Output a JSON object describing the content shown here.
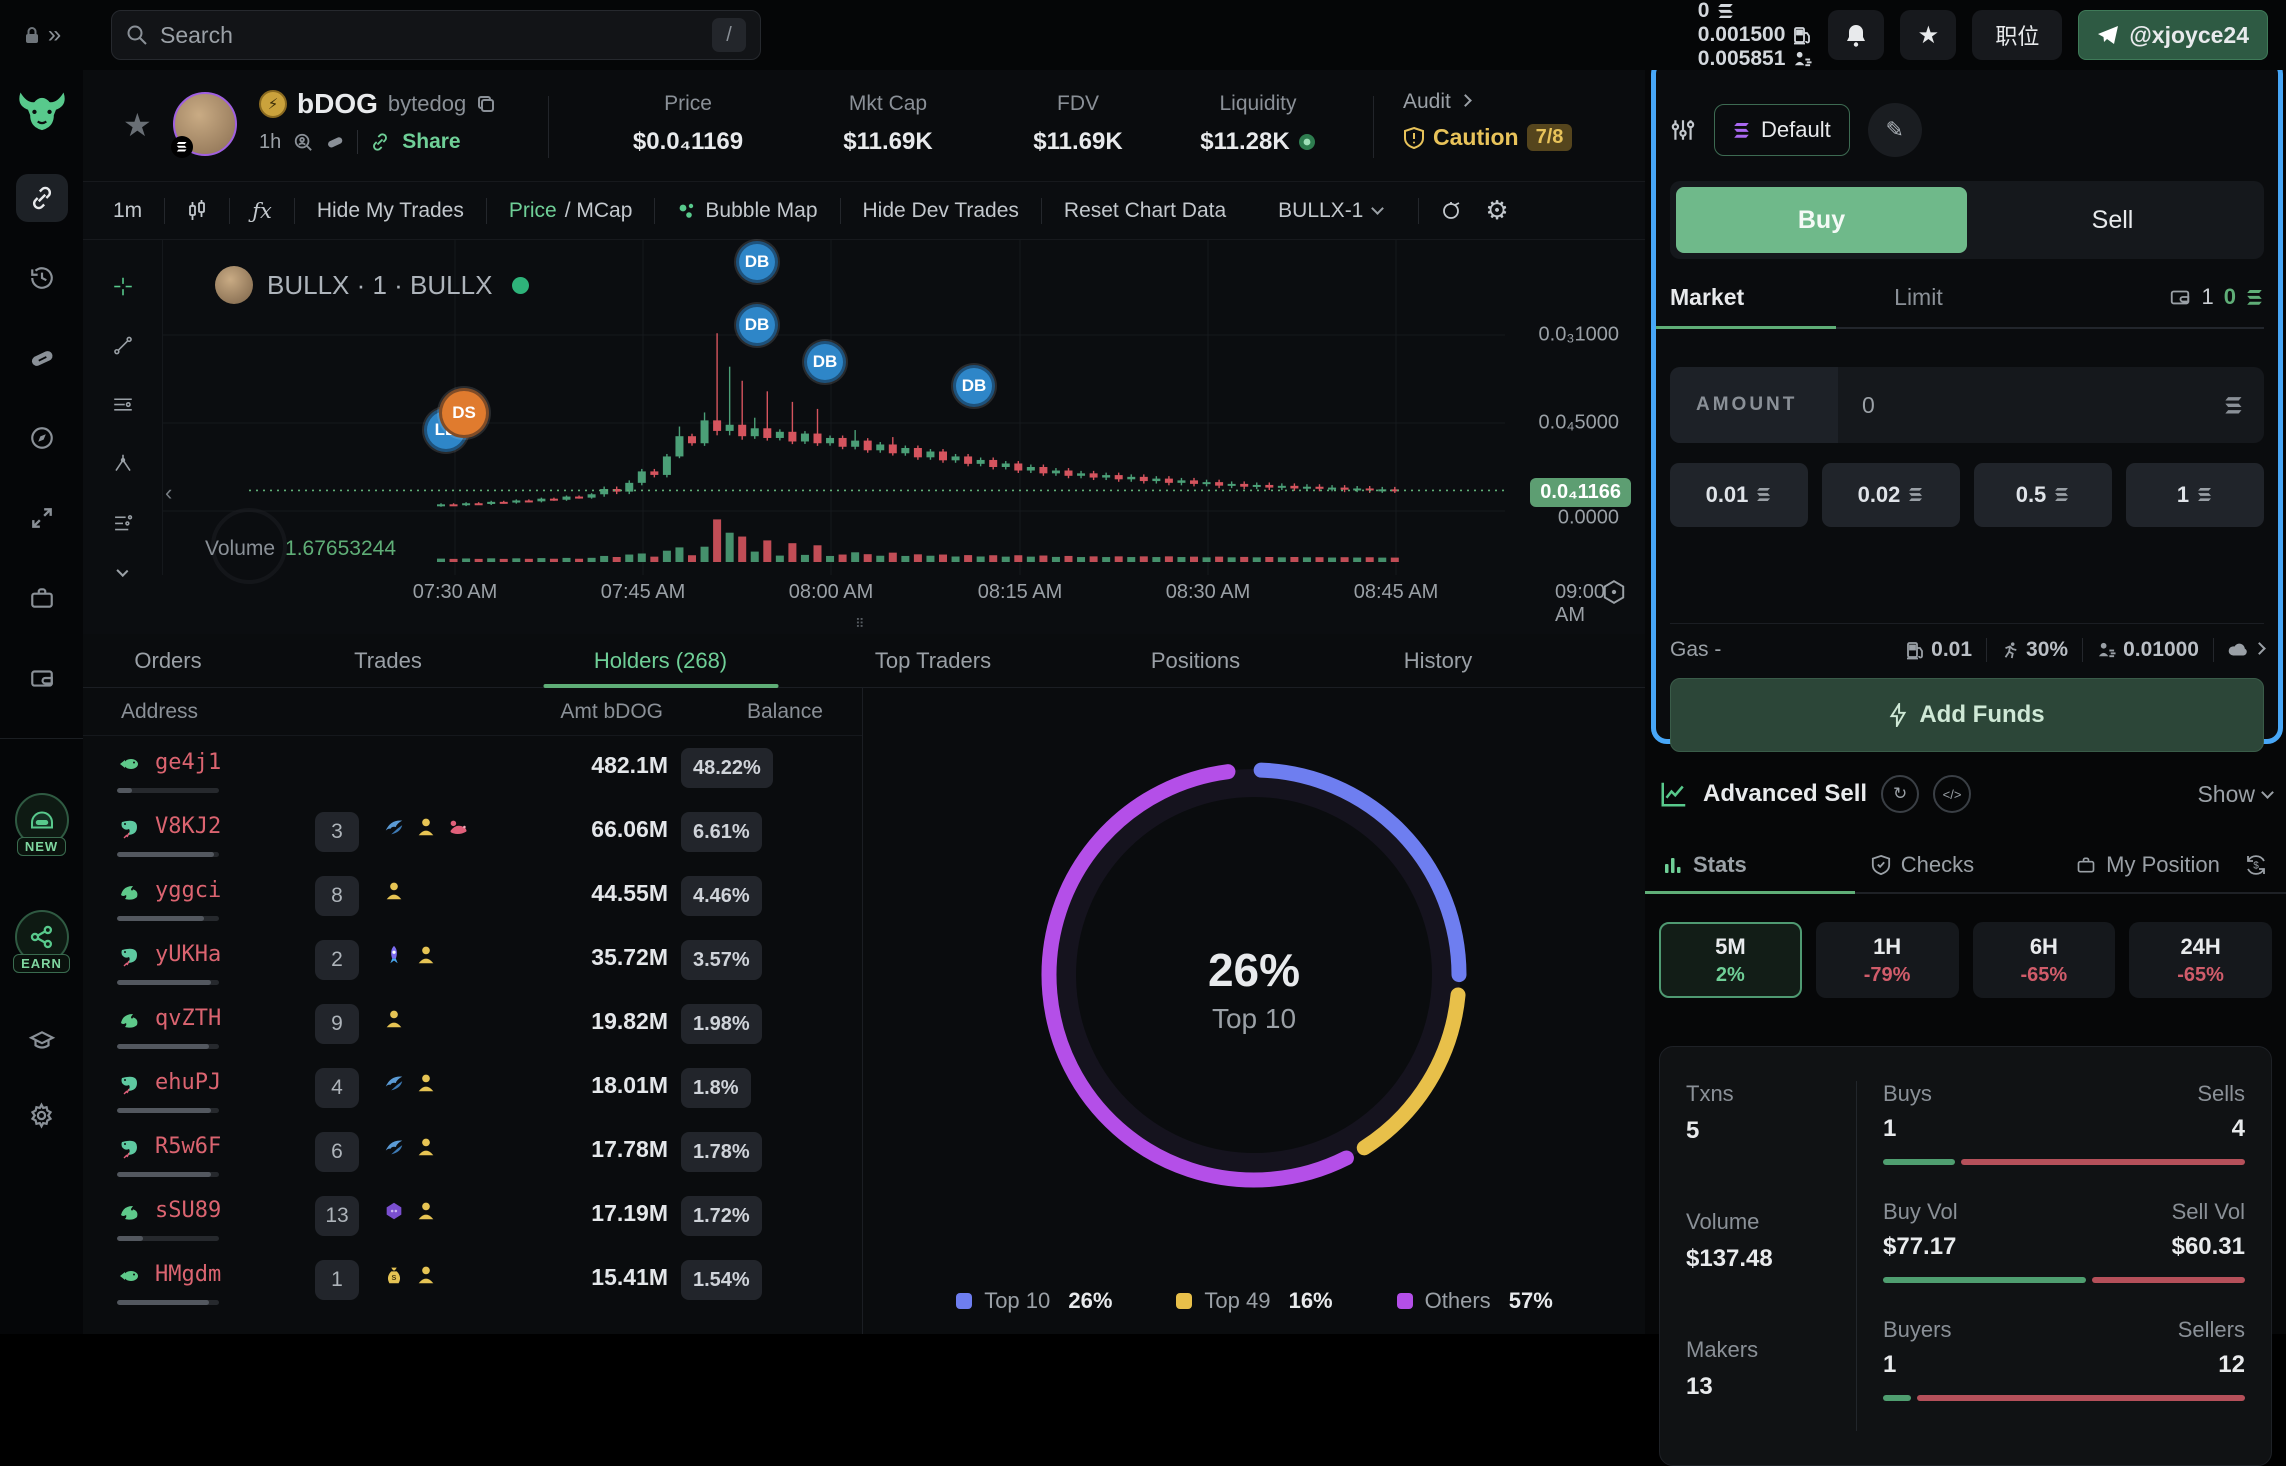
{
  "topbar": {
    "search_placeholder": "Search",
    "search_shortcut": "/",
    "balances": [
      {
        "icon": "solana-icon",
        "value": "0"
      },
      {
        "icon": "gas-pump-icon",
        "value": "0.001500"
      },
      {
        "icon": "priority-fee-icon",
        "value": "0.005851"
      }
    ],
    "workspace_button": "职位",
    "account": "@xjoyce24"
  },
  "token_header": {
    "name": "bDOG",
    "fullname": "bytedog",
    "age": "1h",
    "share_label": "Share",
    "stats": [
      {
        "label": "Price",
        "value": "$0.0₄1169"
      },
      {
        "label": "Mkt Cap",
        "value": "$11.69K"
      },
      {
        "label": "FDV",
        "value": "$11.69K"
      },
      {
        "label": "Liquidity",
        "value": "$11.28K"
      }
    ],
    "audit": {
      "label": "Audit",
      "status": "Caution",
      "score": "7/8"
    }
  },
  "chart_toolbar": {
    "interval": "1m",
    "fx": "ƒx",
    "hide_my_trades": "Hide My Trades",
    "price_label": "Price",
    "mcap_label": "/ MCap",
    "bubble_map": "Bubble Map",
    "hide_dev_trades": "Hide Dev Trades",
    "reset": "Reset Chart Data",
    "source": "BULLX-1"
  },
  "chart": {
    "title": "BULLX · 1 · BULLX",
    "volume_label": "Volume",
    "volume_value": "1.67653244"
  },
  "chart_data": [
    {
      "type": "candlestick",
      "title": "BULLX · 1 · BULLX",
      "interval": "1m",
      "price_unit": "1e-4",
      "ylim": [
        0,
        10.5
      ],
      "grid": true,
      "y_ticks": [
        {
          "label": "0.0₃1000",
          "value": 10
        },
        {
          "label": "0.0₄5000",
          "value": 5
        },
        {
          "label": "0.0000",
          "value": 0
        }
      ],
      "current_price": {
        "label": "0.0₄1166",
        "value": 1.166
      },
      "x_ticks": [
        "07:30 AM",
        "07:45 AM",
        "08:00 AM",
        "08:15 AM",
        "08:30 AM",
        "08:45 AM",
        "09:00 AM"
      ],
      "volume_display": "1.67653244",
      "markers": [
        {
          "label": "LB",
          "x": 283,
          "y": 190,
          "color": "#2e86c8",
          "size": 44
        },
        {
          "label": "DS",
          "x": 301,
          "y": 173,
          "color": "#e07b2e",
          "size": 50
        },
        {
          "label": "DB",
          "x": 594,
          "y": 22,
          "color": "#2e86c8",
          "size": 42
        },
        {
          "label": "DB",
          "x": 594,
          "y": 85,
          "color": "#2e86c8",
          "size": 42
        },
        {
          "label": "DB",
          "x": 662,
          "y": 122,
          "color": "#2e86c8",
          "size": 42
        },
        {
          "label": "DB",
          "x": 811,
          "y": 146,
          "color": "#2e86c8",
          "size": 42
        }
      ],
      "candles": [
        [
          0.3,
          0.38
        ],
        [
          0.38,
          0.34
        ],
        [
          0.34,
          0.44
        ],
        [
          0.44,
          0.4
        ],
        [
          0.4,
          0.52
        ],
        [
          0.52,
          0.48
        ],
        [
          0.48,
          0.6
        ],
        [
          0.6,
          0.55
        ],
        [
          0.55,
          0.7
        ],
        [
          0.7,
          0.64
        ],
        [
          0.64,
          0.82
        ],
        [
          0.82,
          0.76
        ],
        [
          0.76,
          0.95
        ],
        [
          0.95,
          1.25
        ],
        [
          1.25,
          1.1
        ],
        [
          1.1,
          1.6
        ],
        [
          1.6,
          2.25
        ],
        [
          2.25,
          2.05
        ],
        [
          2.05,
          3.1
        ],
        [
          3.1,
          4.25,
          4.8,
          3.0
        ],
        [
          4.25,
          3.85
        ],
        [
          3.85,
          5.15,
          5.6,
          3.7
        ],
        [
          5.15,
          4.55,
          10.1,
          4.3
        ],
        [
          4.55,
          4.9,
          8.2,
          4.3
        ],
        [
          4.9,
          4.25,
          7.4,
          4.05
        ],
        [
          4.25,
          4.7,
          5.3,
          4.1
        ],
        [
          4.7,
          4.15,
          6.8,
          4.0
        ],
        [
          4.15,
          4.5
        ],
        [
          4.5,
          3.95,
          6.2,
          3.8
        ],
        [
          3.95,
          4.4
        ],
        [
          4.4,
          3.85,
          5.8,
          3.7
        ],
        [
          3.85,
          4.15
        ],
        [
          4.15,
          3.65
        ],
        [
          3.65,
          4.0,
          4.6,
          3.5
        ],
        [
          4.0,
          3.45
        ],
        [
          3.45,
          3.78
        ],
        [
          3.78,
          3.28,
          4.2,
          3.15
        ],
        [
          3.28,
          3.58
        ],
        [
          3.58,
          3.05
        ],
        [
          3.05,
          3.38
        ],
        [
          3.38,
          2.88
        ],
        [
          2.88,
          3.1
        ],
        [
          3.1,
          2.68
        ],
        [
          2.68,
          2.9
        ],
        [
          2.9,
          2.5
        ],
        [
          2.5,
          2.7
        ],
        [
          2.7,
          2.3
        ],
        [
          2.3,
          2.5
        ],
        [
          2.5,
          2.14
        ],
        [
          2.14,
          2.3
        ],
        [
          2.3,
          2.0
        ],
        [
          2.0,
          2.14
        ],
        [
          2.14,
          1.9
        ],
        [
          1.9,
          2.04
        ],
        [
          2.04,
          1.8
        ],
        [
          1.8,
          1.94
        ],
        [
          1.94,
          1.7
        ],
        [
          1.7,
          1.84
        ],
        [
          1.84,
          1.6
        ],
        [
          1.6,
          1.74
        ],
        [
          1.74,
          1.54
        ],
        [
          1.54,
          1.64
        ],
        [
          1.64,
          1.44
        ],
        [
          1.44,
          1.54
        ],
        [
          1.54,
          1.38
        ],
        [
          1.38,
          1.48
        ],
        [
          1.48,
          1.33
        ],
        [
          1.33,
          1.43
        ],
        [
          1.43,
          1.28
        ],
        [
          1.28,
          1.38
        ],
        [
          1.38,
          1.26
        ],
        [
          1.26,
          1.33
        ],
        [
          1.33,
          1.21
        ],
        [
          1.21,
          1.28
        ],
        [
          1.28,
          1.17
        ],
        [
          1.17,
          1.23
        ],
        [
          1.23,
          1.166
        ]
      ]
    },
    {
      "type": "donut",
      "center_value": "26%",
      "center_label": "Top 10",
      "legend_position": "bottom",
      "segments": [
        {
          "label": "Top 10",
          "pct": 26,
          "color": "#6e7ef0"
        },
        {
          "label": "Top 49",
          "pct": 16,
          "color": "#e8c04a"
        },
        {
          "label": "Others",
          "pct": 57,
          "color": "#b44fe8"
        }
      ]
    },
    {
      "type": "table",
      "name": "stats-5m",
      "txns": 5,
      "buys": 1,
      "sells": 4,
      "volume_usd": 137.48,
      "buy_vol": 77.17,
      "sell_vol": 60.31,
      "makers": 13,
      "buyers": 1,
      "sellers": 12
    }
  ],
  "bottom_tabs": {
    "items": [
      "Orders",
      "Trades",
      "Holders (268)",
      "Top Traders",
      "Positions",
      "History"
    ],
    "active_index": 2
  },
  "holders": {
    "columns": [
      "Address",
      "Amt bDOG",
      "Balance"
    ],
    "rows": [
      {
        "address": "ge4j1",
        "animal": "fish",
        "badge": "",
        "traits": [],
        "amount": "482.1M",
        "pct": "48.22%",
        "bar": 15
      },
      {
        "address": "V8KJ2",
        "animal": "shrimp",
        "badge": "3",
        "traits": [
          "phoenix",
          "person",
          "rat"
        ],
        "amount": "66.06M",
        "pct": "6.61%",
        "bar": 95
      },
      {
        "address": "yggci",
        "animal": "dolphin",
        "badge": "8",
        "traits": [
          "person"
        ],
        "amount": "44.55M",
        "pct": "4.46%",
        "bar": 85
      },
      {
        "address": "yUKHa",
        "animal": "shrimp",
        "badge": "2",
        "traits": [
          "rocket",
          "person"
        ],
        "amount": "35.72M",
        "pct": "3.57%",
        "bar": 92
      },
      {
        "address": "qvZTH",
        "animal": "dolphin",
        "badge": "9",
        "traits": [
          "person"
        ],
        "amount": "19.82M",
        "pct": "1.98%",
        "bar": 90
      },
      {
        "address": "ehuPJ",
        "animal": "shrimp",
        "badge": "4",
        "traits": [
          "phoenix",
          "person"
        ],
        "amount": "18.01M",
        "pct": "1.8%",
        "bar": 92
      },
      {
        "address": "R5w6F",
        "animal": "shrimp",
        "badge": "6",
        "traits": [
          "phoenix",
          "person"
        ],
        "amount": "17.78M",
        "pct": "1.78%",
        "bar": 92
      },
      {
        "address": "sSU89",
        "animal": "dolphin",
        "badge": "13",
        "traits": [
          "ghost",
          "person"
        ],
        "amount": "17.19M",
        "pct": "1.72%",
        "bar": 25
      },
      {
        "address": "HMgdm",
        "animal": "fish",
        "badge": "1",
        "traits": [
          "moneybag",
          "person"
        ],
        "amount": "15.41M",
        "pct": "1.54%",
        "bar": 90
      }
    ]
  },
  "trade_panel": {
    "preset": "Default",
    "buy": "Buy",
    "sell": "Sell",
    "market": "Market",
    "limit": "Limit",
    "wallet_count": "1",
    "wallet_balance": "0",
    "amount_label": "AMOUNT",
    "amount_value": "0",
    "quick_amounts": [
      "0.01",
      "0.02",
      "0.5",
      "1"
    ],
    "gas_label": "Gas -",
    "gas_value": "0.01",
    "slippage": "30%",
    "tip": "0.01000",
    "add_funds": "Add Funds"
  },
  "advanced_sell": {
    "title": "Advanced Sell",
    "toggle": "Show"
  },
  "stats_tabs": {
    "stats": "Stats",
    "checks": "Checks",
    "my_position": "My Position"
  },
  "timeframes": [
    {
      "label": "5M",
      "change": "2%",
      "dir": "up",
      "active": true
    },
    {
      "label": "1H",
      "change": "-79%",
      "dir": "down",
      "active": false
    },
    {
      "label": "6H",
      "change": "-65%",
      "dir": "down",
      "active": false
    },
    {
      "label": "24H",
      "change": "-65%",
      "dir": "down",
      "active": false
    }
  ],
  "stats_card": {
    "txns_label": "Txns",
    "txns": "5",
    "buys_label": "Buys",
    "buys": "1",
    "sells_label": "Sells",
    "sells": "4",
    "volume_label": "Volume",
    "volume": "$137.48",
    "buy_vol_label": "Buy Vol",
    "buy_vol": "$77.17",
    "sell_vol_label": "Sell Vol",
    "sell_vol": "$60.31",
    "makers_label": "Makers",
    "makers": "13",
    "buyers_label": "Buyers",
    "buyers": "1",
    "sellers_label": "Sellers",
    "sellers": "12"
  }
}
